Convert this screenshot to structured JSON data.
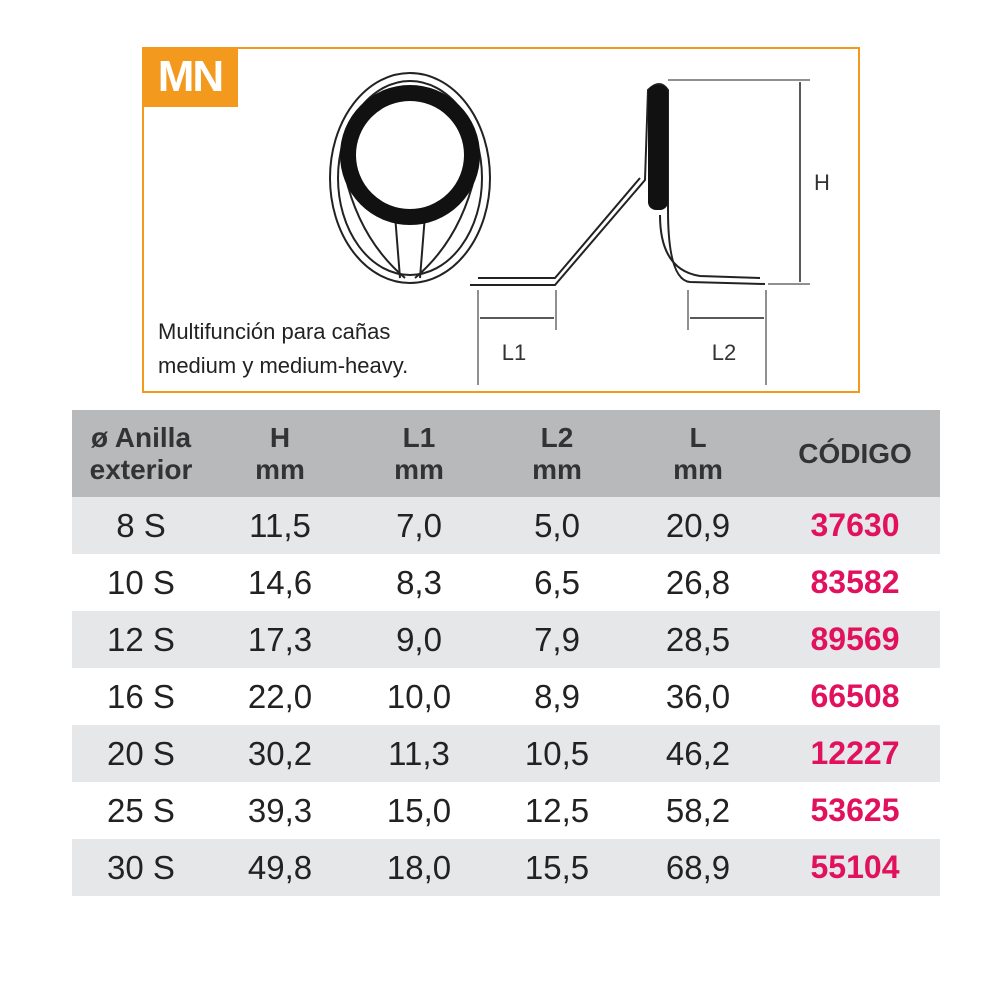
{
  "badge": "MN",
  "description": [
    "Multifunción para cañas",
    "medium y medium-heavy."
  ],
  "diagram": {
    "height_label": "H",
    "l1_label": "L1",
    "l2_label": "L2"
  },
  "table": {
    "header": [
      [
        "ø Anilla",
        "exterior"
      ],
      [
        "H",
        "mm"
      ],
      [
        "L1",
        "mm"
      ],
      [
        "L2",
        "mm"
      ],
      [
        "L",
        "mm"
      ],
      [
        "CÓDIGO"
      ]
    ],
    "rows": [
      [
        "8 S",
        "11,5",
        "7,0",
        "5,0",
        "20,9",
        "37630"
      ],
      [
        "10 S",
        "14,6",
        "8,3",
        "6,5",
        "26,8",
        "83582"
      ],
      [
        "12 S",
        "17,3",
        "9,0",
        "7,9",
        "28,5",
        "89569"
      ],
      [
        "16 S",
        "22,0",
        "10,0",
        "8,9",
        "36,0",
        "66508"
      ],
      [
        "20 S",
        "30,2",
        "11,3",
        "10,5",
        "46,2",
        "12227"
      ],
      [
        "25 S",
        "39,3",
        "15,0",
        "12,5",
        "58,2",
        "53625"
      ],
      [
        "30 S",
        "49,8",
        "18,0",
        "15,5",
        "68,9",
        "55104"
      ]
    ]
  }
}
